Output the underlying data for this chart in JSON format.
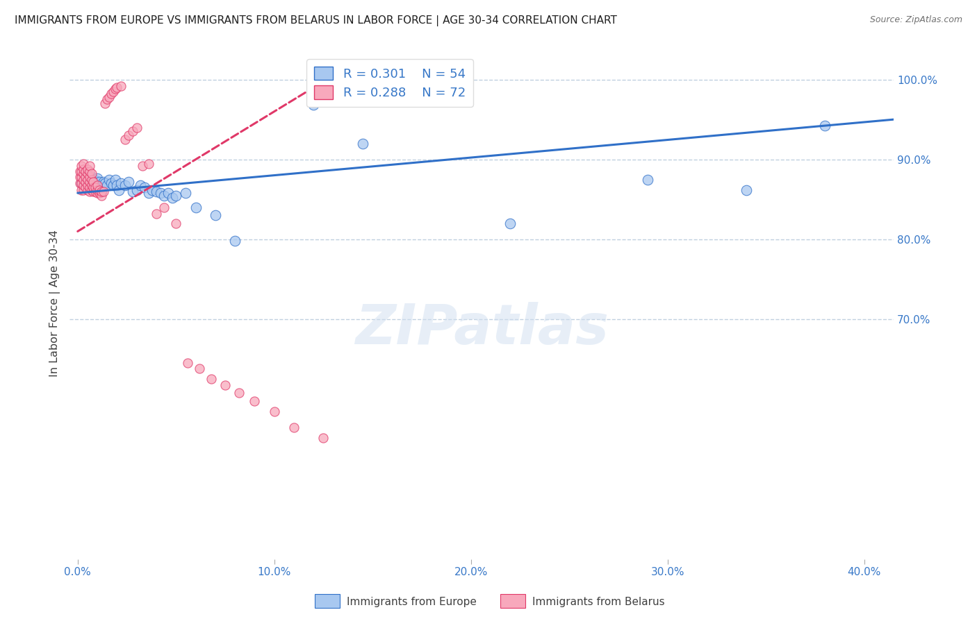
{
  "title": "IMMIGRANTS FROM EUROPE VS IMMIGRANTS FROM BELARUS IN LABOR FORCE | AGE 30-34 CORRELATION CHART",
  "source": "Source: ZipAtlas.com",
  "xlabel_ticks": [
    "0.0%",
    "10.0%",
    "20.0%",
    "30.0%",
    "40.0%"
  ],
  "xlabel_vals": [
    0.0,
    0.1,
    0.2,
    0.3,
    0.4
  ],
  "ylabel": "In Labor Force | Age 30-34",
  "ylabel_ticks": [
    "100.0%",
    "90.0%",
    "80.0%",
    "70.0%"
  ],
  "ylabel_vals": [
    1.0,
    0.9,
    0.8,
    0.7
  ],
  "ylim": [
    0.4,
    1.04
  ],
  "xlim": [
    -0.004,
    0.415
  ],
  "blue_R": 0.301,
  "blue_N": 54,
  "pink_R": 0.288,
  "pink_N": 72,
  "legend_label_blue": "Immigrants from Europe",
  "legend_label_pink": "Immigrants from Belarus",
  "blue_color": "#A8C8F0",
  "blue_line_color": "#3070C8",
  "pink_color": "#F8A8BC",
  "pink_line_color": "#E03868",
  "background_color": "#FFFFFF",
  "grid_color": "#C0D0E0",
  "title_color": "#202020",
  "axis_color": "#3878C8",
  "watermark": "ZIPatlas",
  "blue_x": [
    0.002,
    0.003,
    0.004,
    0.004,
    0.005,
    0.005,
    0.006,
    0.006,
    0.007,
    0.007,
    0.008,
    0.008,
    0.009,
    0.009,
    0.01,
    0.01,
    0.011,
    0.011,
    0.012,
    0.012,
    0.013,
    0.014,
    0.015,
    0.016,
    0.017,
    0.018,
    0.019,
    0.02,
    0.021,
    0.022,
    0.024,
    0.026,
    0.028,
    0.03,
    0.032,
    0.034,
    0.036,
    0.038,
    0.04,
    0.042,
    0.044,
    0.046,
    0.048,
    0.05,
    0.055,
    0.06,
    0.07,
    0.08,
    0.12,
    0.145,
    0.22,
    0.29,
    0.34,
    0.38
  ],
  "blue_y": [
    0.87,
    0.875,
    0.868,
    0.878,
    0.865,
    0.872,
    0.868,
    0.876,
    0.87,
    0.878,
    0.865,
    0.875,
    0.868,
    0.874,
    0.87,
    0.876,
    0.865,
    0.872,
    0.86,
    0.868,
    0.872,
    0.87,
    0.868,
    0.875,
    0.87,
    0.868,
    0.875,
    0.868,
    0.862,
    0.87,
    0.868,
    0.872,
    0.86,
    0.862,
    0.868,
    0.865,
    0.858,
    0.862,
    0.86,
    0.858,
    0.855,
    0.858,
    0.852,
    0.855,
    0.858,
    0.84,
    0.83,
    0.798,
    0.968,
    0.92,
    0.82,
    0.875,
    0.862,
    0.942
  ],
  "pink_x": [
    0.001,
    0.001,
    0.001,
    0.002,
    0.002,
    0.002,
    0.002,
    0.002,
    0.003,
    0.003,
    0.003,
    0.003,
    0.003,
    0.003,
    0.004,
    0.004,
    0.004,
    0.004,
    0.005,
    0.005,
    0.005,
    0.005,
    0.005,
    0.006,
    0.006,
    0.006,
    0.006,
    0.006,
    0.006,
    0.007,
    0.007,
    0.007,
    0.007,
    0.008,
    0.008,
    0.008,
    0.009,
    0.009,
    0.01,
    0.01,
    0.01,
    0.011,
    0.011,
    0.012,
    0.012,
    0.013,
    0.014,
    0.015,
    0.016,
    0.017,
    0.018,
    0.019,
    0.02,
    0.022,
    0.024,
    0.026,
    0.028,
    0.03,
    0.033,
    0.036,
    0.04,
    0.044,
    0.05,
    0.056,
    0.062,
    0.068,
    0.075,
    0.082,
    0.09,
    0.1,
    0.11,
    0.125
  ],
  "pink_y": [
    0.87,
    0.878,
    0.885,
    0.862,
    0.87,
    0.878,
    0.885,
    0.892,
    0.862,
    0.868,
    0.875,
    0.882,
    0.888,
    0.895,
    0.865,
    0.872,
    0.878,
    0.885,
    0.862,
    0.868,
    0.875,
    0.882,
    0.888,
    0.86,
    0.865,
    0.872,
    0.878,
    0.885,
    0.892,
    0.862,
    0.868,
    0.875,
    0.882,
    0.86,
    0.865,
    0.872,
    0.86,
    0.865,
    0.858,
    0.862,
    0.868,
    0.858,
    0.862,
    0.855,
    0.86,
    0.86,
    0.97,
    0.975,
    0.978,
    0.982,
    0.985,
    0.988,
    0.99,
    0.992,
    0.925,
    0.93,
    0.935,
    0.94,
    0.892,
    0.895,
    0.832,
    0.84,
    0.82,
    0.645,
    0.638,
    0.625,
    0.618,
    0.608,
    0.598,
    0.585,
    0.565,
    0.552
  ],
  "blue_trend_x0": 0.0,
  "blue_trend_x1": 0.415,
  "blue_trend_y0": 0.858,
  "blue_trend_y1": 0.95,
  "pink_trend_x0": 0.0,
  "pink_trend_x1": 0.13,
  "pink_trend_y0": 0.81,
  "pink_trend_y1": 1.005
}
